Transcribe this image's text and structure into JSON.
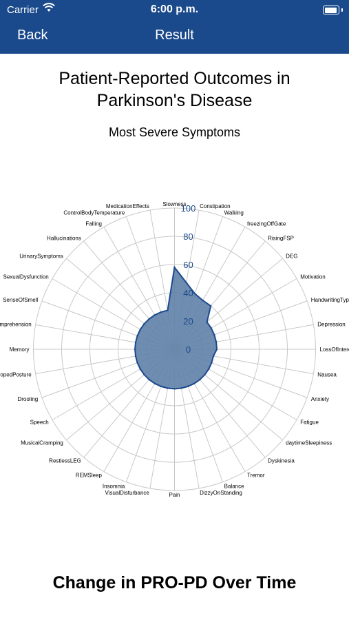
{
  "status_bar": {
    "carrier": "Carrier",
    "time": "6:00 p.m."
  },
  "nav": {
    "back_label": "Back",
    "title": "Result"
  },
  "page": {
    "title_line1": "Patient-Reported Outcomes in",
    "title_line2": "Parkinson's Disease",
    "section_title": "Change in PRO-PD Over Time"
  },
  "colors": {
    "bar": "#1b4a8c",
    "fill": "#5f7fa9",
    "stroke": "#1b4a8c",
    "tick": "#1b4a8c",
    "grid": "#c8c8c8"
  },
  "chart_data": {
    "type": "radar",
    "subtitle": "Most Severe Symptoms",
    "r_range": [
      0,
      100
    ],
    "r_ticks": [
      "0",
      "20",
      "40",
      "60",
      "80",
      "100"
    ],
    "categories": [
      "Slowness",
      "Constipation",
      "Walking",
      "freezingOffGate",
      "RisingFSP",
      "DEG",
      "Motivation",
      "HandwritingTyping",
      "Depression",
      "LossOfInterest",
      "Nausea",
      "Anxiety",
      "Fatigue",
      "daytimeSleepiness",
      "Dyskinesia",
      "Tremor",
      "Balance",
      "DizzyOnStanding",
      "Pain",
      "VisualDisturbance",
      "Insomnia",
      "REMSleep",
      "RestlessLEG",
      "MusicalCramping",
      "Speech",
      "Drooling",
      "StoopedPosture",
      "Memory",
      "Comprehension",
      "SenseOfSmell",
      "SexualDysfunction",
      "UrinarySymptoms",
      "Hallucinations",
      "Falling",
      "ControlBodyTemperature",
      "MedicationEffects"
    ],
    "values": [
      58,
      48,
      42,
      40,
      40,
      30,
      30,
      30,
      30,
      30,
      28,
      28,
      28,
      28,
      28,
      28,
      28,
      28,
      28,
      28,
      28,
      28,
      28,
      28,
      28,
      28,
      28,
      28,
      28,
      28,
      28,
      28,
      28,
      28,
      28,
      28
    ],
    "grid": true
  }
}
